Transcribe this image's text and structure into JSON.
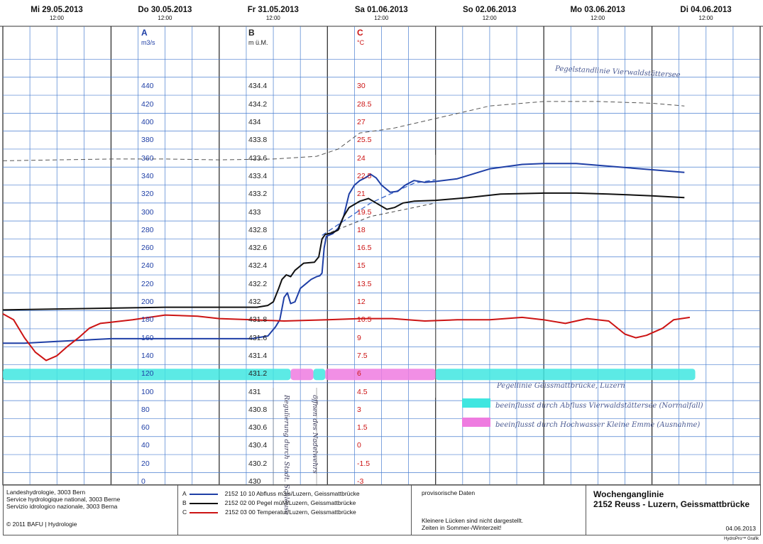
{
  "chart_data": {
    "type": "line",
    "title": "Wochenganglinie",
    "subtitle": "2152 Reuss - Luzern, Geissmattbrücke",
    "days": [
      {
        "label": "Mi  29.05.2013",
        "time": "12:00"
      },
      {
        "label": "Do  30.05.2013",
        "time": "12:00"
      },
      {
        "label": "Fr  31.05.2013",
        "time": "12:00"
      },
      {
        "label": "Sa  01.06.2013",
        "time": "12:00"
      },
      {
        "label": "So  02.06.2013",
        "time": "12:00"
      },
      {
        "label": "Mo  03.06.2013",
        "time": "12:00"
      },
      {
        "label": "Di  04.06.2013",
        "time": "12:00"
      }
    ],
    "x_range_days": [
      0,
      7
    ],
    "axes": {
      "A": {
        "letter": "A",
        "unit": "m3/s",
        "ticks": [
          "440",
          "420",
          "400",
          "380",
          "360",
          "340",
          "320",
          "300",
          "280",
          "260",
          "240",
          "220",
          "200",
          "180",
          "160",
          "140",
          "120",
          "100",
          "80",
          "60",
          "40",
          "20",
          "0"
        ],
        "range": [
          0,
          440
        ]
      },
      "B": {
        "letter": "B",
        "unit": "m ü.M.",
        "ticks": [
          "434.4",
          "434.2",
          "434",
          "433.8",
          "433.6",
          "433.4",
          "433.2",
          "433",
          "432.8",
          "432.6",
          "432.4",
          "432.2",
          "432",
          "431.8",
          "431.6",
          "431.4",
          "431.2",
          "431",
          "430.8",
          "430.6",
          "430.4",
          "430.2",
          "430"
        ],
        "range": [
          430,
          434.4
        ]
      },
      "C": {
        "letter": "C",
        "unit": "°C",
        "ticks": [
          "30",
          "28.5",
          "27",
          "25.5",
          "24",
          "22.5",
          "21",
          "19.5",
          "18",
          "16.5",
          "15",
          "13.5",
          "12",
          "10.5",
          "9",
          "7.5",
          "6",
          "4.5",
          "3",
          "1.5",
          "0",
          "-1.5",
          "-3"
        ],
        "range": [
          -3,
          30
        ]
      }
    },
    "series": [
      {
        "name": "2152 10 10  Abfluss m3/s/Luzern, Geissmattbrücke",
        "axis": "A",
        "color": "#1f3fa6",
        "points": [
          [
            0,
            154
          ],
          [
            0.2,
            154
          ],
          [
            0.5,
            156
          ],
          [
            1.0,
            159
          ],
          [
            1.5,
            159
          ],
          [
            2.0,
            159
          ],
          [
            2.3,
            159
          ],
          [
            2.45,
            162
          ],
          [
            2.52,
            172
          ],
          [
            2.56,
            180
          ],
          [
            2.6,
            205
          ],
          [
            2.63,
            210
          ],
          [
            2.66,
            198
          ],
          [
            2.7,
            200
          ],
          [
            2.75,
            215
          ],
          [
            2.8,
            220
          ],
          [
            2.85,
            225
          ],
          [
            2.9,
            228
          ],
          [
            2.93,
            229
          ],
          [
            2.95,
            232
          ],
          [
            2.97,
            260
          ],
          [
            2.99,
            273
          ],
          [
            3.05,
            276
          ],
          [
            3.1,
            282
          ],
          [
            3.15,
            295
          ],
          [
            3.2,
            320
          ],
          [
            3.25,
            330
          ],
          [
            3.3,
            335
          ],
          [
            3.35,
            338
          ],
          [
            3.4,
            342
          ],
          [
            3.45,
            338
          ],
          [
            3.5,
            330
          ],
          [
            3.58,
            322
          ],
          [
            3.65,
            323
          ],
          [
            3.72,
            330
          ],
          [
            3.8,
            335
          ],
          [
            3.9,
            333
          ],
          [
            4.0,
            334
          ],
          [
            4.2,
            337
          ],
          [
            4.5,
            348
          ],
          [
            4.8,
            353
          ],
          [
            5.0,
            354
          ],
          [
            5.3,
            354
          ],
          [
            5.6,
            351
          ],
          [
            6.0,
            347
          ],
          [
            6.3,
            344
          ]
        ]
      },
      {
        "name": "2152 02 00  Pegel müM/Luzern, Geissmattbrücke",
        "axis": "B",
        "color": "#111111",
        "points": [
          [
            0,
            431.91
          ],
          [
            0.5,
            431.92
          ],
          [
            1.0,
            431.93
          ],
          [
            1.5,
            431.94
          ],
          [
            2.0,
            431.94
          ],
          [
            2.35,
            431.94
          ],
          [
            2.45,
            431.96
          ],
          [
            2.5,
            432.0
          ],
          [
            2.55,
            432.15
          ],
          [
            2.58,
            432.25
          ],
          [
            2.62,
            432.3
          ],
          [
            2.66,
            432.28
          ],
          [
            2.7,
            432.35
          ],
          [
            2.78,
            432.43
          ],
          [
            2.88,
            432.44
          ],
          [
            2.92,
            432.5
          ],
          [
            2.95,
            432.7
          ],
          [
            2.98,
            432.75
          ],
          [
            3.05,
            432.77
          ],
          [
            3.1,
            432.8
          ],
          [
            3.15,
            432.95
          ],
          [
            3.2,
            433.05
          ],
          [
            3.3,
            433.12
          ],
          [
            3.38,
            433.15
          ],
          [
            3.45,
            433.1
          ],
          [
            3.55,
            433.03
          ],
          [
            3.62,
            433.05
          ],
          [
            3.7,
            433.1
          ],
          [
            3.8,
            433.12
          ],
          [
            4.0,
            433.13
          ],
          [
            4.3,
            433.16
          ],
          [
            4.6,
            433.2
          ],
          [
            5.0,
            433.21
          ],
          [
            5.3,
            433.21
          ],
          [
            5.6,
            433.2
          ],
          [
            6.0,
            433.18
          ],
          [
            6.3,
            433.16
          ]
        ]
      },
      {
        "name": "2152 03 00  Temperatur/Luzern, Geissmattbrücke",
        "axis": "C",
        "color": "#cc1414",
        "points": [
          [
            0,
            11.0
          ],
          [
            0.1,
            10.5
          ],
          [
            0.2,
            9.0
          ],
          [
            0.3,
            7.8
          ],
          [
            0.4,
            7.1
          ],
          [
            0.5,
            7.5
          ],
          [
            0.6,
            8.3
          ],
          [
            0.7,
            9.0
          ],
          [
            0.8,
            9.8
          ],
          [
            0.9,
            10.2
          ],
          [
            1.0,
            10.3
          ],
          [
            1.2,
            10.5
          ],
          [
            1.5,
            10.9
          ],
          [
            1.8,
            10.8
          ],
          [
            2.0,
            10.6
          ],
          [
            2.3,
            10.5
          ],
          [
            2.6,
            10.4
          ],
          [
            3.0,
            10.5
          ],
          [
            3.3,
            10.6
          ],
          [
            3.6,
            10.6
          ],
          [
            3.9,
            10.4
          ],
          [
            4.2,
            10.5
          ],
          [
            4.5,
            10.5
          ],
          [
            4.8,
            10.7
          ],
          [
            5.0,
            10.5
          ],
          [
            5.2,
            10.2
          ],
          [
            5.4,
            10.6
          ],
          [
            5.6,
            10.4
          ],
          [
            5.75,
            9.3
          ],
          [
            5.85,
            9.0
          ],
          [
            5.95,
            9.2
          ],
          [
            6.1,
            9.8
          ],
          [
            6.2,
            10.5
          ],
          [
            6.35,
            10.7
          ]
        ]
      }
    ],
    "annotations": {
      "handwritten": [
        "Pegelstandlinie Vierwaldstättersee",
        "Pegellinie Geissmattbrücke, Luzern",
        "beeinflusst durch Abfluss Vierwaldstättersee (Normalfall)",
        "beeinflusst durch Hochwasser Kleine Emme (Ausnahme)",
        "Regulierung durch Stadt. Schleuse",
        "öffnen des Nadelwehrs"
      ],
      "lake_level_A": [
        [
          0,
          357
        ],
        [
          0.5,
          358
        ],
        [
          1.0,
          359
        ],
        [
          1.5,
          359
        ],
        [
          2.0,
          358
        ],
        [
          2.5,
          359
        ],
        [
          2.9,
          362
        ],
        [
          3.1,
          370
        ],
        [
          3.3,
          388
        ],
        [
          3.6,
          393
        ],
        [
          4.0,
          404
        ],
        [
          4.5,
          418
        ],
        [
          5.0,
          423
        ],
        [
          5.5,
          423
        ],
        [
          6.0,
          421
        ],
        [
          6.3,
          418
        ]
      ],
      "extrapolation_A": [
        [
          2.95,
          274
        ],
        [
          3.4,
          310
        ],
        [
          3.8,
          332
        ],
        [
          4.0,
          336
        ]
      ],
      "extrapolation_B": [
        [
          2.98,
          432.75
        ],
        [
          3.4,
          432.95
        ],
        [
          3.8,
          433.05
        ],
        [
          4.0,
          433.1
        ]
      ],
      "band_segments": [
        {
          "from": 0.0,
          "to": 2.66,
          "class": "Normalfall"
        },
        {
          "from": 2.66,
          "to": 2.87,
          "class": "Ausnahme"
        },
        {
          "from": 2.87,
          "to": 2.98,
          "class": "Normalfall"
        },
        {
          "from": 2.98,
          "to": 4.0,
          "class": "Ausnahme"
        },
        {
          "from": 4.0,
          "to": 6.4,
          "class": "Normalfall"
        }
      ],
      "band_value_A": 120,
      "colors": {
        "Normalfall": "#3fe6e0",
        "Ausnahme": "#ee7be0"
      }
    }
  },
  "footer": {
    "org": [
      "Landeshydrologie, 3003 Bern",
      "Service hydrologique national, 3003 Berne",
      "Servizio idrologico nazionale, 3003 Berna"
    ],
    "copyright": "© 2011 BAFU | Hydrologie",
    "legend": [
      {
        "key": "A",
        "label": "2152 10 10  Abfluss m3/s/Luzern, Geissmattbrücke"
      },
      {
        "key": "B",
        "label": "2152 02 00  Pegel müM/Luzern, Geissmattbrücke"
      },
      {
        "key": "C",
        "label": "2152 03 00  Temperatur/Luzern, Geissmattbrücke"
      }
    ],
    "note_provisional": "provisorische Daten",
    "note_gaps": "Kleinere Lücken sind nicht dargestellt.",
    "note_time": "Zeiten in Sommer-/Winterzeit!",
    "title": "Wochenganglinie",
    "station": "2152 Reuss - Luzern, Geissmattbrücke",
    "date": "04.06.2013",
    "brand": "HydroPro™ Grafik"
  }
}
